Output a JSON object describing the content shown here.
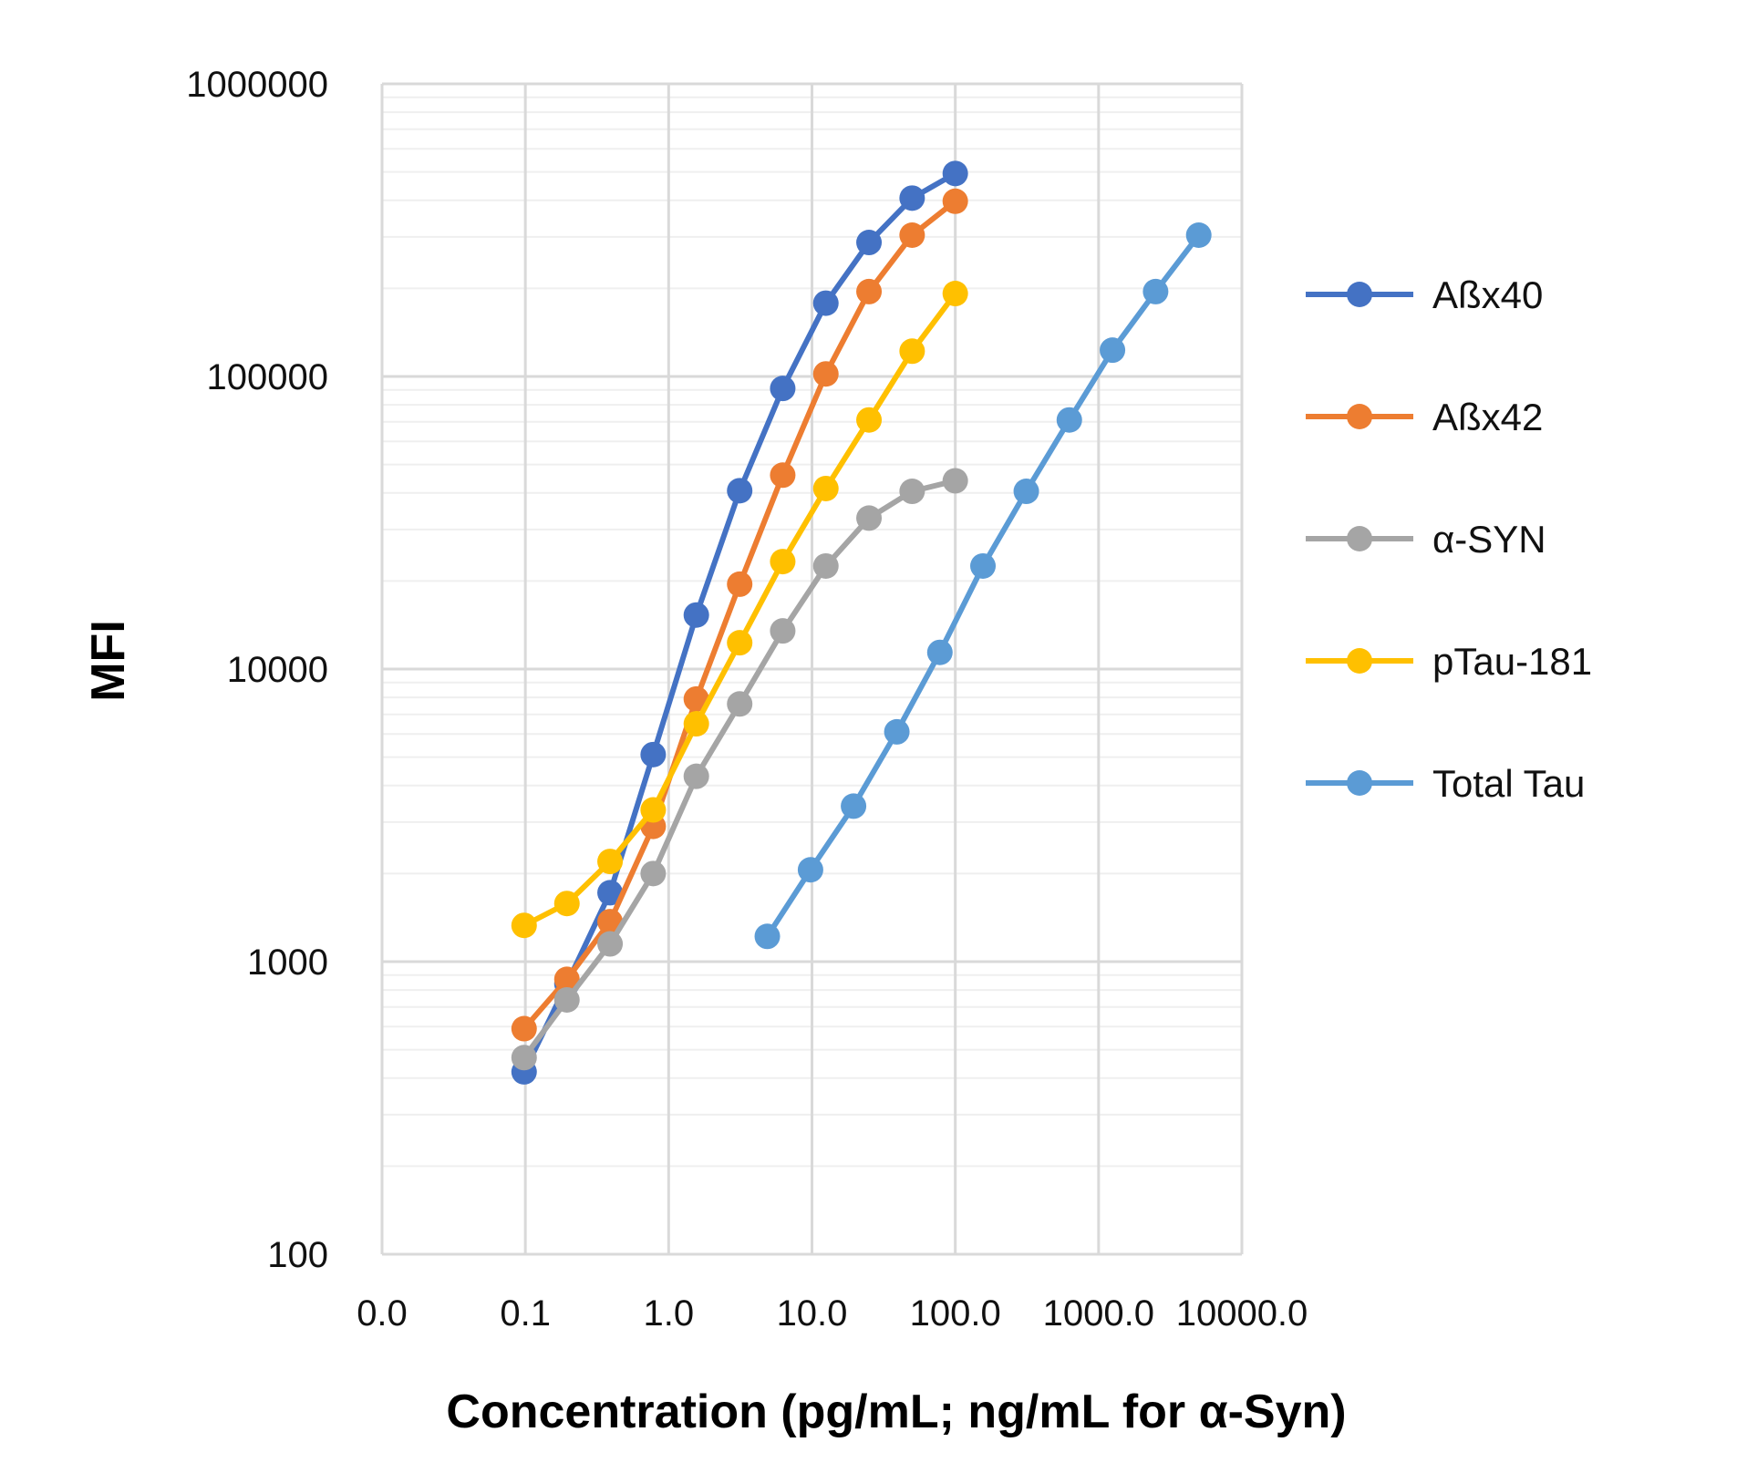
{
  "chart_data": {
    "type": "line",
    "title": "",
    "xlabel": "Concentration (pg/mL; ng/mL for α-Syn)",
    "ylabel": "MFI",
    "xscale": "log",
    "yscale": "log",
    "xlim": [
      0.01,
      10000
    ],
    "ylim": [
      100,
      1000000
    ],
    "x_tick_labels": [
      "0.0",
      "0.1",
      "1.0",
      "10.0",
      "100.0",
      "1000.0",
      "10000.0"
    ],
    "x_tick_values": [
      0.01,
      0.1,
      1,
      10,
      100,
      1000,
      10000
    ],
    "y_tick_labels": [
      "100",
      "1000",
      "10000",
      "100000",
      "1000000"
    ],
    "y_tick_values": [
      100,
      1000,
      10000,
      100000,
      1000000
    ],
    "grid": true,
    "legend_position": "right",
    "series": [
      {
        "name": "Aßx40",
        "color": "#4472C4",
        "x": [
          0.098,
          0.195,
          0.39,
          0.78,
          1.56,
          3.13,
          6.25,
          12.5,
          25,
          50,
          100
        ],
        "y": [
          420,
          840,
          1720,
          5100,
          15300,
          40700,
          91000,
          178000,
          287000,
          407000,
          494000
        ]
      },
      {
        "name": "Aßx42",
        "color": "#ED7D31",
        "x": [
          0.098,
          0.195,
          0.39,
          0.78,
          1.56,
          3.13,
          6.25,
          12.5,
          25,
          50,
          100
        ],
        "y": [
          590,
          870,
          1370,
          2900,
          7900,
          19500,
          46000,
          102000,
          195000,
          304000,
          397000
        ]
      },
      {
        "name": "α-SYN",
        "color": "#A5A5A5",
        "x": [
          0.098,
          0.195,
          0.39,
          0.78,
          1.56,
          3.13,
          6.25,
          12.5,
          25,
          50,
          100
        ],
        "y": [
          470,
          740,
          1150,
          2000,
          4300,
          7600,
          13500,
          22500,
          32800,
          40500,
          44000
        ]
      },
      {
        "name": "pTau-181",
        "color": "#FFC000",
        "x": [
          0.098,
          0.195,
          0.39,
          0.78,
          1.56,
          3.13,
          6.25,
          12.5,
          25,
          50,
          100
        ],
        "y": [
          1330,
          1580,
          2200,
          3300,
          6500,
          12300,
          23300,
          41400,
          71000,
          122000,
          192000
        ]
      },
      {
        "name": "Total Tau",
        "color": "#5B9BD5",
        "x": [
          4.88,
          9.77,
          19.5,
          39.1,
          78.1,
          156,
          313,
          625,
          1250,
          2500,
          5000
        ],
        "y": [
          1220,
          2060,
          3400,
          6100,
          11400,
          22500,
          40500,
          71000,
          123000,
          195000,
          304000
        ]
      }
    ]
  }
}
